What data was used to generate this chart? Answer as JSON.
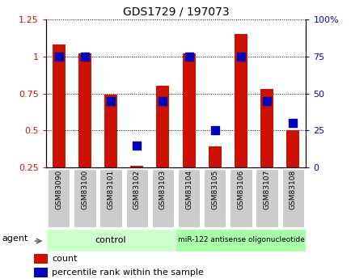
{
  "title": "GDS1729 / 197073",
  "samples": [
    "GSM83090",
    "GSM83100",
    "GSM83101",
    "GSM83102",
    "GSM83103",
    "GSM83104",
    "GSM83105",
    "GSM83106",
    "GSM83107",
    "GSM83108"
  ],
  "red_bars": [
    1.08,
    1.02,
    0.74,
    0.26,
    0.8,
    1.02,
    0.39,
    1.15,
    0.78,
    0.5
  ],
  "blue_dots_pct": [
    75,
    75,
    45,
    15,
    45,
    75,
    25,
    75,
    45,
    30
  ],
  "ylim_left": [
    0.25,
    1.25
  ],
  "ylim_right": [
    0,
    100
  ],
  "yticks_left": [
    0.25,
    0.5,
    0.75,
    1.0,
    1.25
  ],
  "ytick_labels_left": [
    "0.25",
    "0.5",
    "0.75",
    "1",
    "1.25"
  ],
  "yticks_right": [
    0,
    25,
    50,
    75,
    100
  ],
  "ytick_labels_right": [
    "0",
    "25",
    "50",
    "75",
    "100%"
  ],
  "n_control": 5,
  "n_treatment": 5,
  "control_label": "control",
  "treatment_label": "miR-122 antisense oligonucleotide",
  "agent_label": "agent",
  "legend_count": "count",
  "legend_pct": "percentile rank within the sample",
  "bar_color": "#cc1100",
  "dot_color": "#0000bb",
  "bar_width": 0.5,
  "dot_size": 45,
  "control_bg": "#ccffcc",
  "treatment_bg": "#aaffaa",
  "xlabel_bg": "#cccccc",
  "title_color": "#000000",
  "left_tick_color": "#cc1100",
  "right_tick_color": "#0000bb",
  "grid_color": "#000000"
}
